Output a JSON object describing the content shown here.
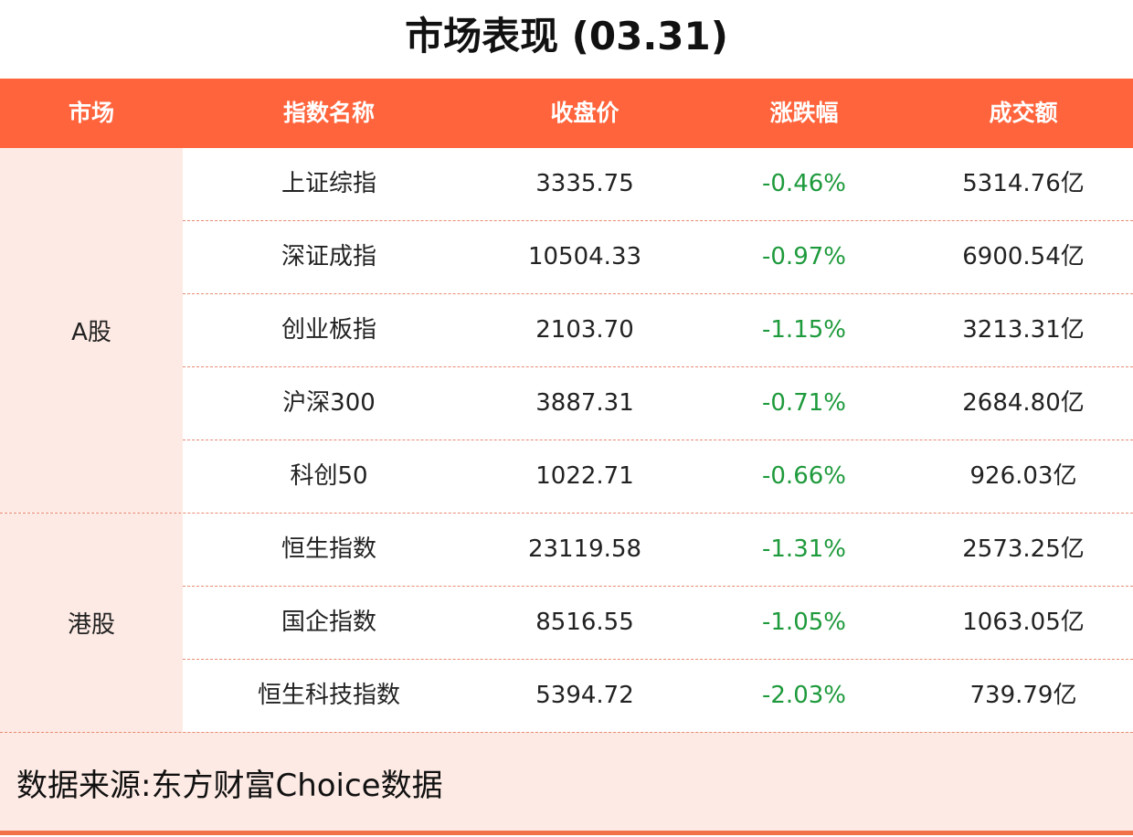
{
  "title": "市场表现 (03.31)",
  "headers": [
    "市场",
    "指数名称",
    "收盘价",
    "涨跌幅",
    "成交额"
  ],
  "groups": [
    {
      "market": "A股",
      "rows": [
        {
          "name": "上证综指",
          "close": "3335.75",
          "change": "-0.46%",
          "volume": "5314.76亿"
        },
        {
          "name": "深证成指",
          "close": "10504.33",
          "change": "-0.97%",
          "volume": "6900.54亿"
        },
        {
          "name": "创业板指",
          "close": "2103.70",
          "change": "-1.15%",
          "volume": "3213.31亿"
        },
        {
          "name": "沪深300",
          "close": "3887.31",
          "change": "-0.71%",
          "volume": "2684.80亿"
        },
        {
          "name": "科创50",
          "close": "1022.71",
          "change": "-0.66%",
          "volume": "926.03亿"
        }
      ]
    },
    {
      "market": "港股",
      "rows": [
        {
          "name": "恒生指数",
          "close": "23119.58",
          "change": "-1.31%",
          "volume": "2573.25亿"
        },
        {
          "name": "国企指数",
          "close": "8516.55",
          "change": "-1.05%",
          "volume": "1063.05亿"
        },
        {
          "name": "恒生科技指数",
          "close": "5394.72",
          "change": "-2.03%",
          "volume": "739.79亿"
        }
      ]
    }
  ],
  "source": "数据来源:东方财富Choice数据",
  "colors": {
    "header": "#FF643C",
    "market_bg": "#FDEAE4",
    "negative": "#1E9A3C"
  }
}
